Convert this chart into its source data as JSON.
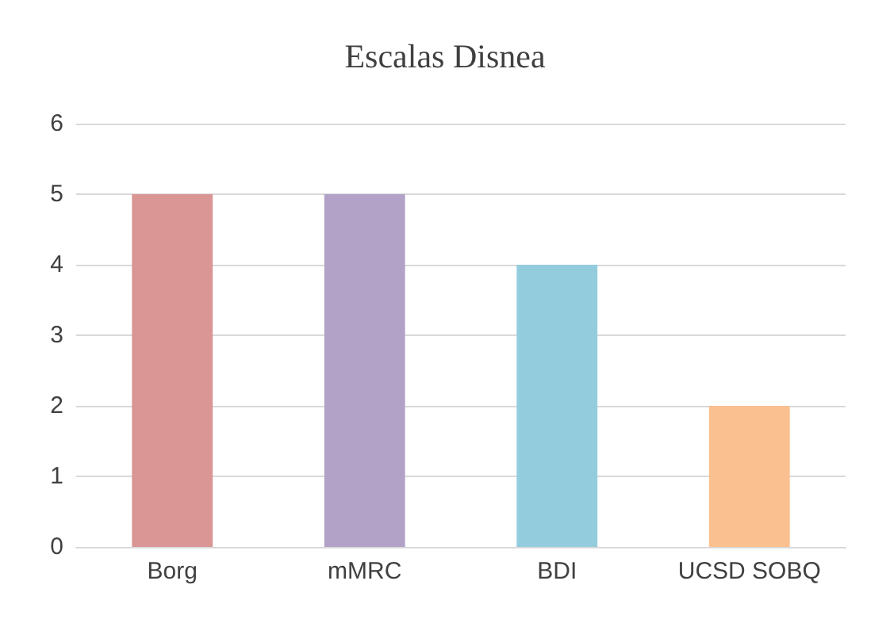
{
  "chart_data": {
    "type": "bar",
    "title": "Escalas Disnea",
    "categories": [
      "Borg",
      "mMRC",
      "BDI",
      "UCSD SOBQ"
    ],
    "values": [
      5,
      5,
      4,
      2
    ],
    "colors": [
      "#d99694",
      "#b3a2c7",
      "#93cddd",
      "#fac090"
    ],
    "ylim": [
      0,
      6
    ],
    "yticks": [
      0,
      1,
      2,
      3,
      4,
      5,
      6
    ],
    "grid": "y"
  }
}
